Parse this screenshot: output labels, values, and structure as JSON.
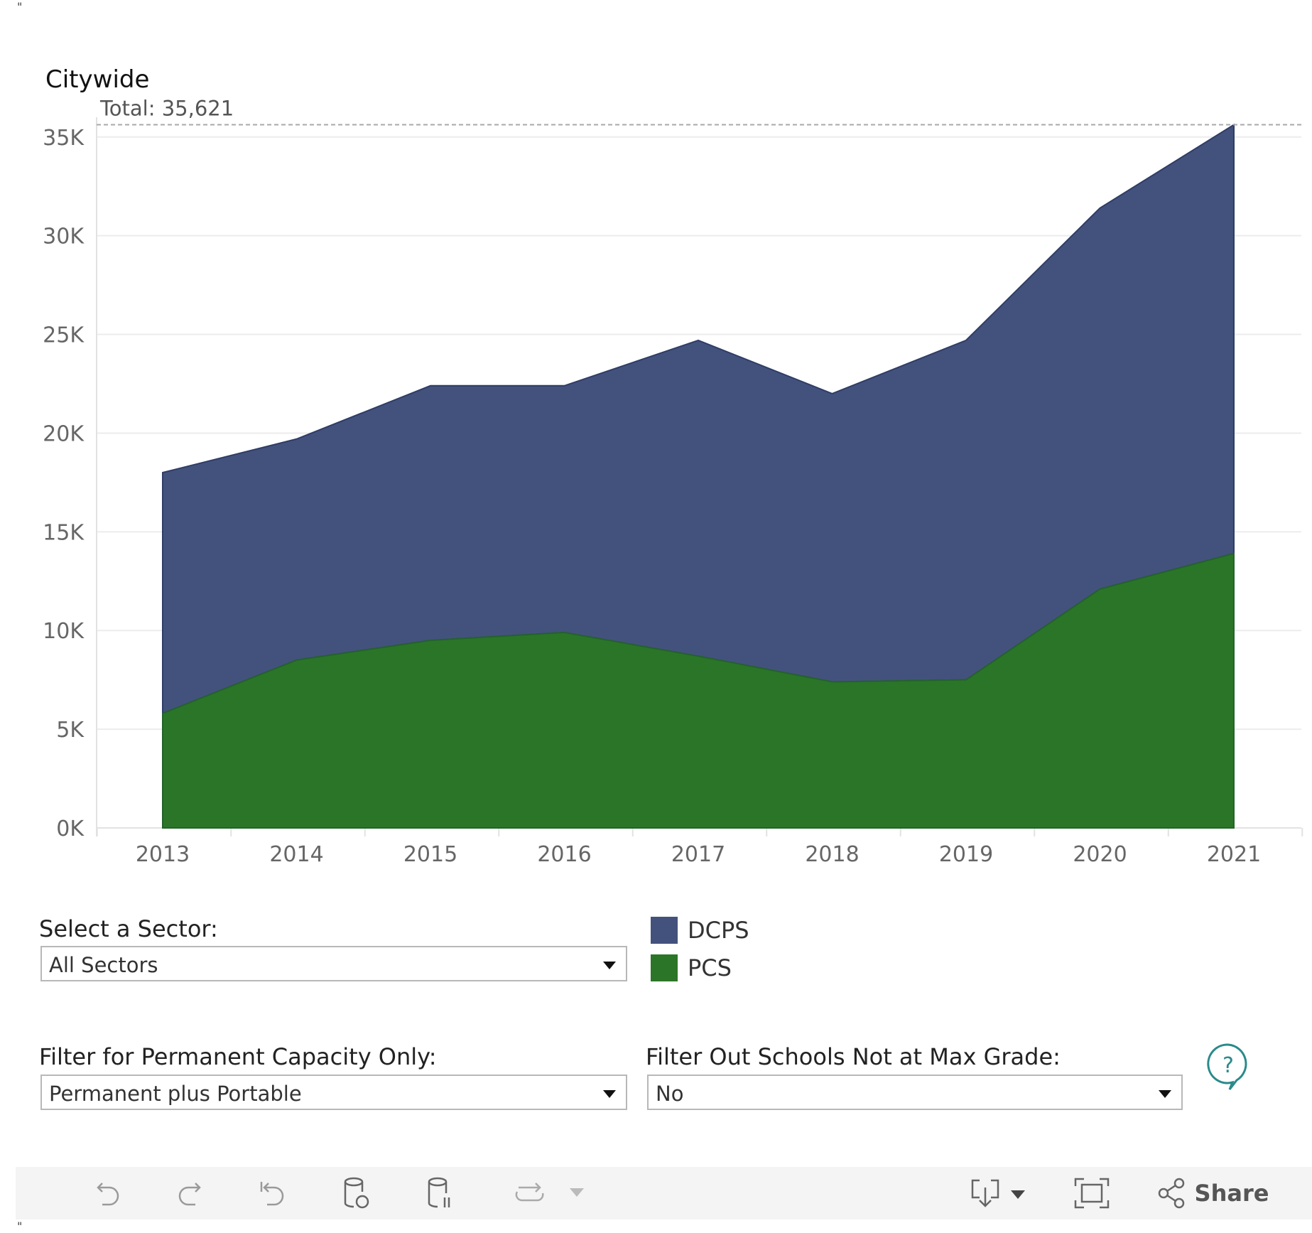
{
  "title": "Citywide",
  "chart_data": {
    "type": "area",
    "stacked": true,
    "x": [
      2013,
      2014,
      2015,
      2016,
      2017,
      2018,
      2019,
      2020,
      2021
    ],
    "series": [
      {
        "name": "PCS",
        "color": "#2b7529",
        "values": [
          5800,
          8500,
          9500,
          9900,
          8700,
          7400,
          7500,
          12100,
          13900
        ]
      },
      {
        "name": "DCPS",
        "color": "#43527c",
        "values": [
          12200,
          11200,
          12900,
          12500,
          16000,
          14600,
          17200,
          19300,
          21721
        ]
      }
    ],
    "ylim": [
      0,
      36000
    ],
    "yticks": [
      0,
      5000,
      10000,
      15000,
      20000,
      25000,
      30000,
      35000
    ],
    "ytick_labels": [
      "0K",
      "5K",
      "10K",
      "15K",
      "20K",
      "25K",
      "30K",
      "35K"
    ],
    "xtick_labels": [
      "2013",
      "2014",
      "2015",
      "2016",
      "2017",
      "2018",
      "2019",
      "2020",
      "2021"
    ],
    "reference_line": {
      "value": 35621,
      "label": "Total: 35,621"
    },
    "grid": true,
    "legend_position": "bottom"
  },
  "filters": {
    "sector": {
      "label": "Select a Sector:",
      "value": "All Sectors"
    },
    "capacity": {
      "label": "Filter for Permanent Capacity Only:",
      "value": "Permanent plus Portable"
    },
    "max_grade": {
      "label": "Filter Out Schools Not at Max Grade:",
      "value": "No"
    }
  },
  "legend": [
    {
      "label": "DCPS",
      "color": "#43527c"
    },
    {
      "label": "PCS",
      "color": "#2b7529"
    }
  ],
  "toolbar": {
    "share_label": "Share",
    "icons": [
      "undo-icon",
      "redo-icon",
      "revert-icon",
      "refresh-icon",
      "pause-icon",
      "replay-icon",
      "download-icon",
      "fullscreen-icon",
      "share-icon"
    ]
  }
}
